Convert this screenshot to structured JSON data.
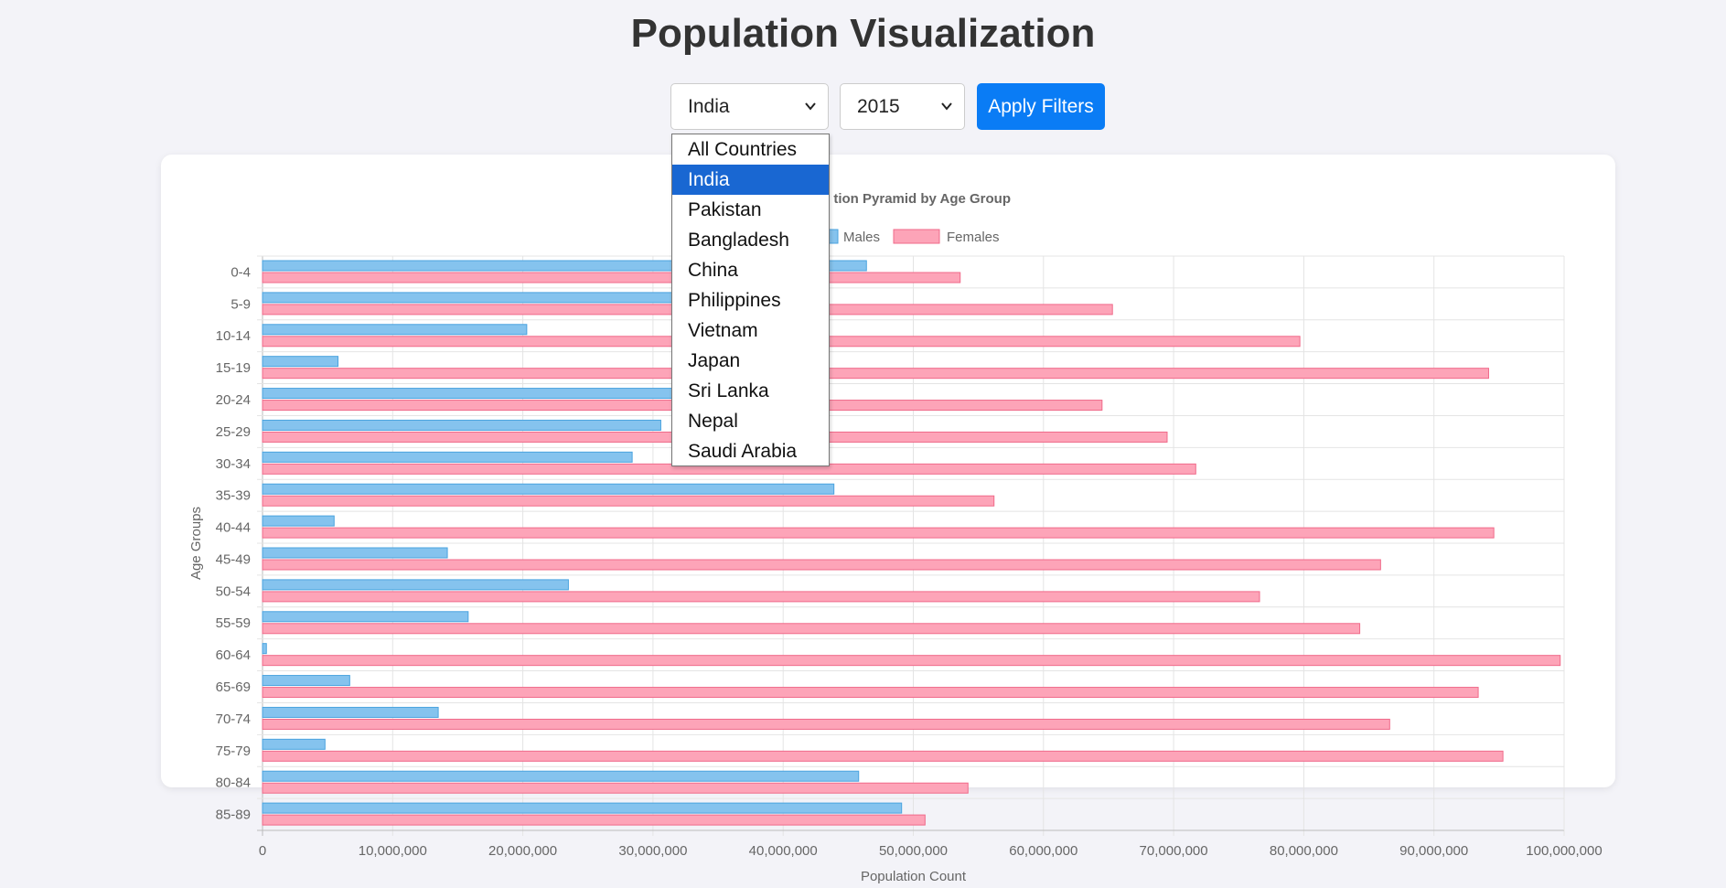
{
  "page": {
    "title": "Population Visualization"
  },
  "filters": {
    "country": {
      "value": "India",
      "options": [
        "All Countries",
        "India",
        "Pakistan",
        "Bangladesh",
        "China",
        "Philippines",
        "Vietnam",
        "Japan",
        "Sri Lanka",
        "Nepal",
        "Saudi Arabia"
      ]
    },
    "year": {
      "value": "2015"
    },
    "apply_label": "Apply Filters"
  },
  "colors": {
    "accent": "#0a7cf5",
    "selected_option": "#1967d2",
    "males_fill": "#85c3ee",
    "males_stroke": "#4aa3df",
    "females_fill": "#fda4b8",
    "females_stroke": "#f06a8a"
  },
  "chart_data": {
    "type": "bar",
    "orientation": "horizontal",
    "title": "Population Pyramid by Age Group",
    "title_visible_fragment": "tion Pyramid by Age Group",
    "xlabel": "Population Count",
    "ylabel": "Age Groups",
    "xlim": [
      0,
      100000000
    ],
    "x_ticks": [
      "0",
      "10,000,000",
      "20,000,000",
      "30,000,000",
      "40,000,000",
      "50,000,000",
      "60,000,000",
      "70,000,000",
      "80,000,000",
      "90,000,000",
      "100,000,000"
    ],
    "grid": true,
    "legend_position": "top",
    "categories": [
      "0-4",
      "5-9",
      "10-14",
      "15-19",
      "20-24",
      "25-29",
      "30-34",
      "35-39",
      "40-44",
      "45-49",
      "50-54",
      "55-59",
      "60-64",
      "65-69",
      "70-74",
      "75-79",
      "80-84",
      "85-89"
    ],
    "series": [
      {
        "name": "Males",
        "values": [
          46400000,
          36000000,
          20300000,
          5800000,
          34000000,
          30600000,
          28400000,
          43900000,
          5500000,
          14200000,
          23500000,
          15800000,
          300000,
          6700000,
          13500000,
          4800000,
          45800000,
          49100000
        ]
      },
      {
        "name": "Females",
        "values": [
          53600000,
          65300000,
          79700000,
          94200000,
          64500000,
          69500000,
          71700000,
          56200000,
          94600000,
          85900000,
          76600000,
          84300000,
          99700000,
          93400000,
          86600000,
          95300000,
          54200000,
          50900000
        ]
      }
    ]
  }
}
